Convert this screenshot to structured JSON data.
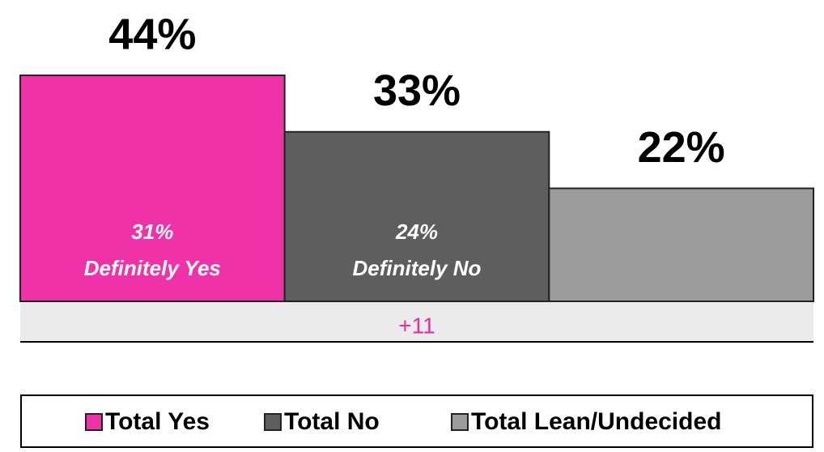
{
  "chart_data": {
    "type": "bar",
    "categories": [
      "Total Yes",
      "Total No",
      "Total Lean/Undecided"
    ],
    "values": [
      44,
      33,
      22
    ],
    "value_labels": [
      "44%",
      "33%",
      "22%"
    ],
    "colors": [
      "#f032a8",
      "#5e5e5e",
      "#9b9b9b"
    ],
    "inner_values": [
      31,
      24,
      null
    ],
    "inner_value_labels": [
      "31%",
      "24%",
      null
    ],
    "inner_names": [
      "Definitely Yes",
      "Definitely No",
      null
    ],
    "difference": 11,
    "difference_label": "+11",
    "difference_color": "#e0309e"
  }
}
